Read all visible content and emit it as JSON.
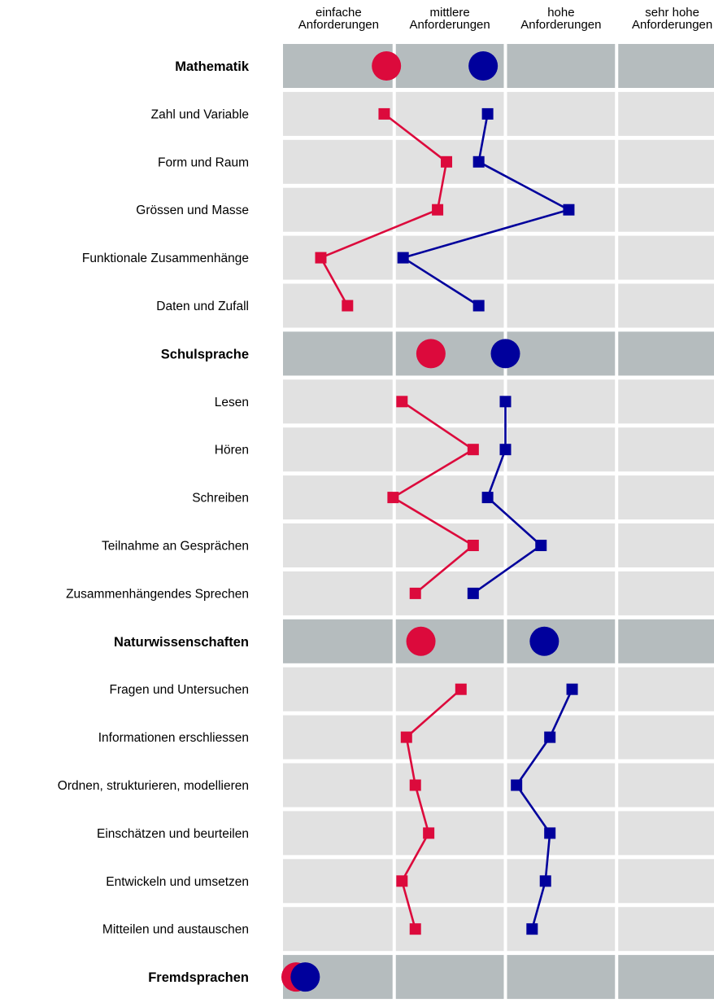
{
  "colors": {
    "series_a": "#dc0a3c",
    "series_b": "#00009c",
    "header_row_bg": "#b5bcbe",
    "row_bg": "#e1e1e1"
  },
  "chart_data": {
    "type": "scatter",
    "categories": [
      [
        "einfache",
        "Anforderungen"
      ],
      [
        "mittlere",
        "Anforderungen"
      ],
      [
        "hohe",
        "Anforderungen"
      ],
      [
        "sehr hohe",
        "Anforderungen"
      ]
    ],
    "xlim": [
      0,
      4
    ],
    "legend": "none",
    "groups": [
      {
        "label": "Mathematik",
        "summary": [
          0.93,
          1.8
        ],
        "rows": [
          {
            "label": "Zahl und Variable",
            "values": [
              0.91,
              1.84
            ]
          },
          {
            "label": "Form und Raum",
            "values": [
              1.47,
              1.76
            ]
          },
          {
            "label": "Grössen und Masse",
            "values": [
              1.39,
              2.57
            ]
          },
          {
            "label": "Funktionale Zusammenhänge",
            "values": [
              0.34,
              1.08
            ]
          },
          {
            "label": "Daten und Zufall",
            "values": [
              0.58,
              1.76
            ]
          }
        ]
      },
      {
        "label": "Schulsprache",
        "summary": [
          1.33,
          2.0
        ],
        "rows": [
          {
            "label": "Lesen",
            "values": [
              1.07,
              2.0
            ]
          },
          {
            "label": "Hören",
            "values": [
              1.71,
              2.0
            ]
          },
          {
            "label": "Schreiben",
            "values": [
              0.99,
              1.84
            ]
          },
          {
            "label": "Teilnahme an Gesprächen",
            "values": [
              1.71,
              2.32
            ]
          },
          {
            "label": "Zusammenhängendes Sprechen",
            "values": [
              1.19,
              1.71
            ]
          }
        ]
      },
      {
        "label": "Naturwissenschaften",
        "summary": [
          1.24,
          2.35
        ],
        "rows": [
          {
            "label": "Fragen und Untersuchen",
            "values": [
              1.6,
              2.6
            ]
          },
          {
            "label": "Informationen erschliessen",
            "values": [
              1.11,
              2.4
            ]
          },
          {
            "label": "Ordnen, strukturieren, modellieren",
            "values": [
              1.19,
              2.1
            ]
          },
          {
            "label": "Einschätzen und beurteilen",
            "values": [
              1.31,
              2.4
            ]
          },
          {
            "label": "Entwickeln und umsetzen",
            "values": [
              1.07,
              2.36
            ]
          },
          {
            "label": "Mitteilen und austauschen",
            "values": [
              1.19,
              2.24
            ]
          }
        ]
      },
      {
        "label": "Fremdsprachen",
        "summary": [
          0.0,
          0.2
        ],
        "rows": []
      }
    ]
  }
}
